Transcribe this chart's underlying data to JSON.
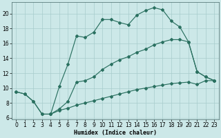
{
  "xlabel": "Humidex (Indice chaleur)",
  "bg_color": "#cce8e8",
  "grid_color": "#a8cccc",
  "line_color": "#2a7060",
  "xlim": [
    -0.5,
    23.5
  ],
  "ylim": [
    5.8,
    21.5
  ],
  "yticks": [
    6,
    8,
    10,
    12,
    14,
    16,
    18,
    20
  ],
  "xticks": [
    0,
    1,
    2,
    3,
    4,
    5,
    6,
    7,
    8,
    9,
    10,
    11,
    12,
    13,
    14,
    15,
    16,
    17,
    18,
    19,
    20,
    21,
    22,
    23
  ],
  "line1_x": [
    0,
    1,
    2,
    3,
    4,
    5,
    6,
    7,
    8,
    9,
    10,
    11,
    12,
    13,
    14,
    15,
    16,
    17,
    18,
    19,
    20,
    21,
    22,
    23
  ],
  "line1_y": [
    9.5,
    9.2,
    8.2,
    6.5,
    6.5,
    7.0,
    7.3,
    7.7,
    8.0,
    8.3,
    8.6,
    8.9,
    9.2,
    9.5,
    9.8,
    10.0,
    10.2,
    10.4,
    10.6,
    10.7,
    10.8,
    10.5,
    11.0,
    11.0
  ],
  "line2_x": [
    0,
    1,
    2,
    3,
    4,
    5,
    6,
    7,
    8,
    9,
    10,
    11,
    12,
    13,
    14,
    15,
    16,
    17,
    18,
    19,
    20,
    21,
    22,
    23
  ],
  "line2_y": [
    9.5,
    9.2,
    8.2,
    6.5,
    6.5,
    10.2,
    13.2,
    17.0,
    16.8,
    17.5,
    19.2,
    19.2,
    18.8,
    18.5,
    19.8,
    20.4,
    20.8,
    20.5,
    19.0,
    18.2,
    16.2,
    12.2,
    11.5,
    11.0
  ],
  "line3_x": [
    4,
    5,
    6,
    7,
    8,
    9,
    10,
    11,
    12,
    13,
    14,
    15,
    16,
    17,
    18,
    19,
    20,
    21,
    22,
    23
  ],
  "line3_y": [
    6.5,
    7.2,
    8.2,
    10.8,
    11.0,
    11.5,
    12.5,
    13.2,
    13.8,
    14.2,
    14.8,
    15.2,
    15.8,
    16.2,
    16.5,
    16.5,
    16.2,
    12.2,
    11.5,
    11.0
  ]
}
